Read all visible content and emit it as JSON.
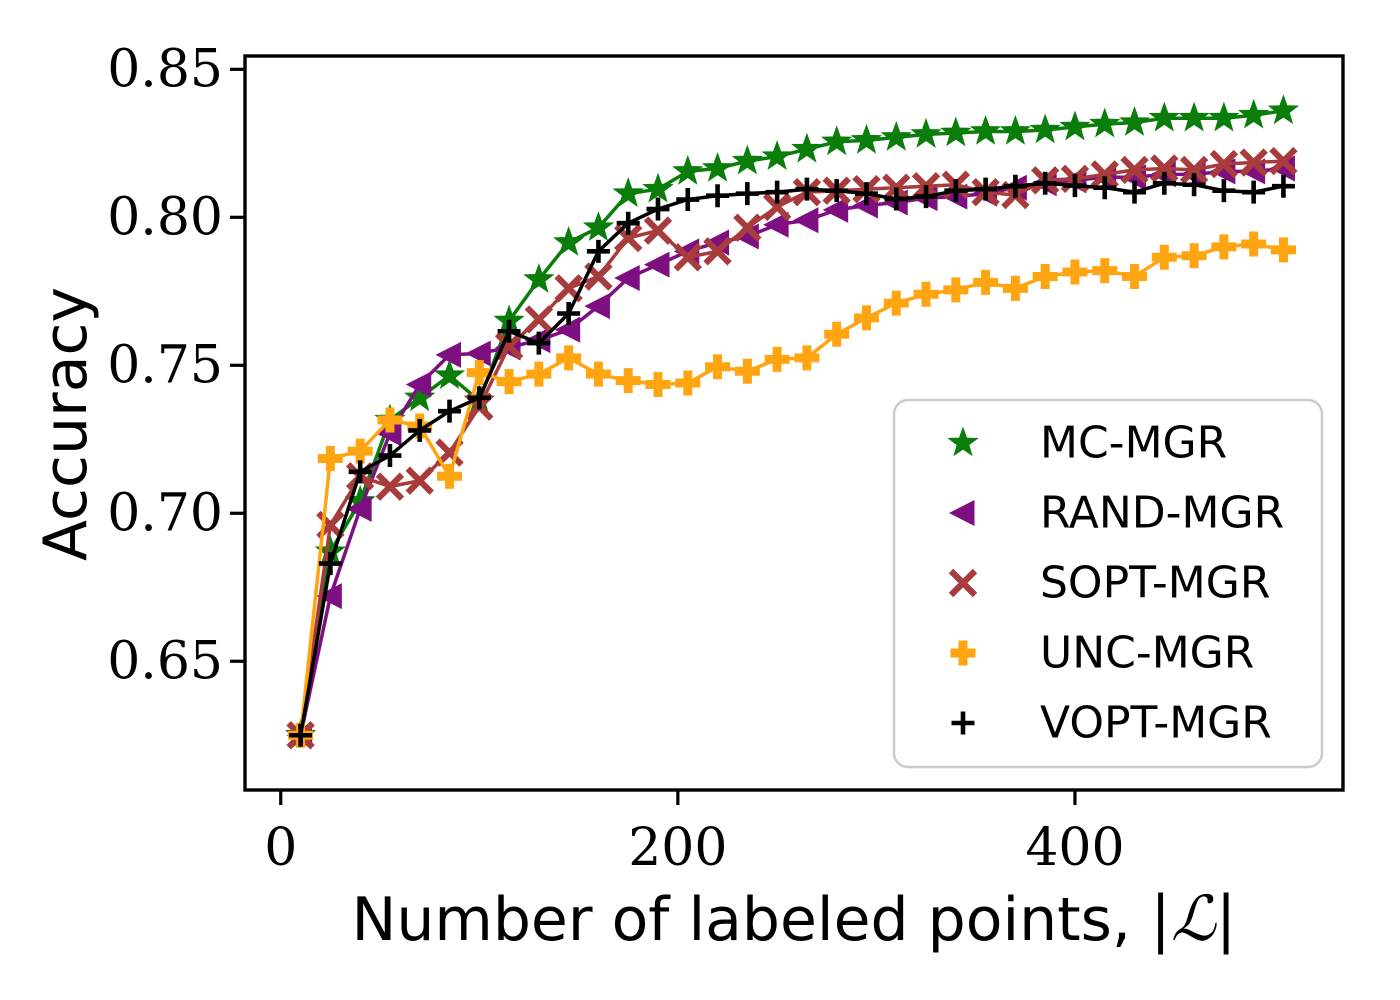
{
  "figure": {
    "ylabel": "Accuracy",
    "xlabel_main": "Number of labeled points, ",
    "xlabel_math": "|ℒ|"
  },
  "chart_data": {
    "type": "line",
    "title": "",
    "xlabel": "Number of labeled points, |ℒ|",
    "ylabel": "Accuracy",
    "xlim": [
      -18,
      535
    ],
    "ylim": [
      0.6065,
      0.8545
    ],
    "xticks": [
      0,
      200,
      400
    ],
    "xtick_labels": [
      "0",
      "200",
      "400"
    ],
    "yticks": [
      0.65,
      0.7,
      0.75,
      0.8,
      0.85
    ],
    "ytick_labels": [
      "0.65",
      "0.70",
      "0.75",
      "0.80",
      "0.85"
    ],
    "grid": false,
    "legend_position": "lower right",
    "x": [
      10,
      25,
      40,
      55,
      70,
      85,
      100,
      115,
      130,
      145,
      160,
      175,
      190,
      205,
      220,
      235,
      250,
      265,
      280,
      295,
      310,
      325,
      340,
      355,
      370,
      385,
      400,
      415,
      430,
      445,
      460,
      475,
      490,
      505
    ],
    "series": [
      {
        "name": "MC-MGR",
        "color": "#0a7d0a",
        "marker": "star",
        "values": [
          0.625,
          0.687,
          0.704,
          0.7315,
          0.739,
          0.7465,
          0.738,
          0.765,
          0.779,
          0.7915,
          0.7965,
          0.808,
          0.8095,
          0.8155,
          0.8165,
          0.819,
          0.8205,
          0.823,
          0.8255,
          0.826,
          0.827,
          0.828,
          0.8285,
          0.829,
          0.829,
          0.8295,
          0.8305,
          0.8315,
          0.832,
          0.8335,
          0.8335,
          0.8335,
          0.8345,
          0.836
        ]
      },
      {
        "name": "RAND-MGR",
        "color": "#7e0f80",
        "marker": "triangle-left",
        "values": [
          0.625,
          0.672,
          0.7015,
          0.727,
          0.7435,
          0.7535,
          0.754,
          0.756,
          0.7585,
          0.762,
          0.77,
          0.7795,
          0.784,
          0.7885,
          0.7915,
          0.7935,
          0.7975,
          0.799,
          0.8025,
          0.804,
          0.805,
          0.8065,
          0.807,
          0.808,
          0.81,
          0.8115,
          0.8125,
          0.8135,
          0.8135,
          0.8145,
          0.8145,
          0.8155,
          0.8155,
          0.8165
        ]
      },
      {
        "name": "SOPT-MGR",
        "color": "#a83c3c",
        "marker": "x",
        "values": [
          0.625,
          0.696,
          0.7125,
          0.709,
          0.711,
          0.7205,
          0.736,
          0.7565,
          0.7655,
          0.776,
          0.78,
          0.793,
          0.7955,
          0.7865,
          0.7885,
          0.7965,
          0.8035,
          0.8085,
          0.809,
          0.8095,
          0.81,
          0.8105,
          0.811,
          0.8085,
          0.8075,
          0.8125,
          0.813,
          0.8145,
          0.816,
          0.8165,
          0.816,
          0.818,
          0.8185,
          0.819
        ]
      },
      {
        "name": "UNC-MGR",
        "color": "#ffa512",
        "marker": "plus-thick",
        "values": [
          0.625,
          0.7185,
          0.721,
          0.7315,
          0.7295,
          0.7125,
          0.7475,
          0.7445,
          0.747,
          0.7525,
          0.747,
          0.7448,
          0.7435,
          0.744,
          0.7495,
          0.748,
          0.752,
          0.7525,
          0.7605,
          0.766,
          0.771,
          0.774,
          0.7755,
          0.778,
          0.776,
          0.78,
          0.7815,
          0.782,
          0.78,
          0.7865,
          0.787,
          0.79,
          0.791,
          0.789
        ]
      },
      {
        "name": "VOPT-MGR",
        "color": "#000000",
        "marker": "plus",
        "values": [
          0.625,
          0.683,
          0.714,
          0.7195,
          0.728,
          0.7345,
          0.739,
          0.7615,
          0.7575,
          0.7675,
          0.7885,
          0.798,
          0.8028,
          0.806,
          0.8073,
          0.808,
          0.8085,
          0.8095,
          0.809,
          0.808,
          0.8062,
          0.807,
          0.809,
          0.8095,
          0.8105,
          0.8115,
          0.8107,
          0.81,
          0.8085,
          0.8115,
          0.811,
          0.809,
          0.8085,
          0.8105
        ]
      }
    ]
  }
}
